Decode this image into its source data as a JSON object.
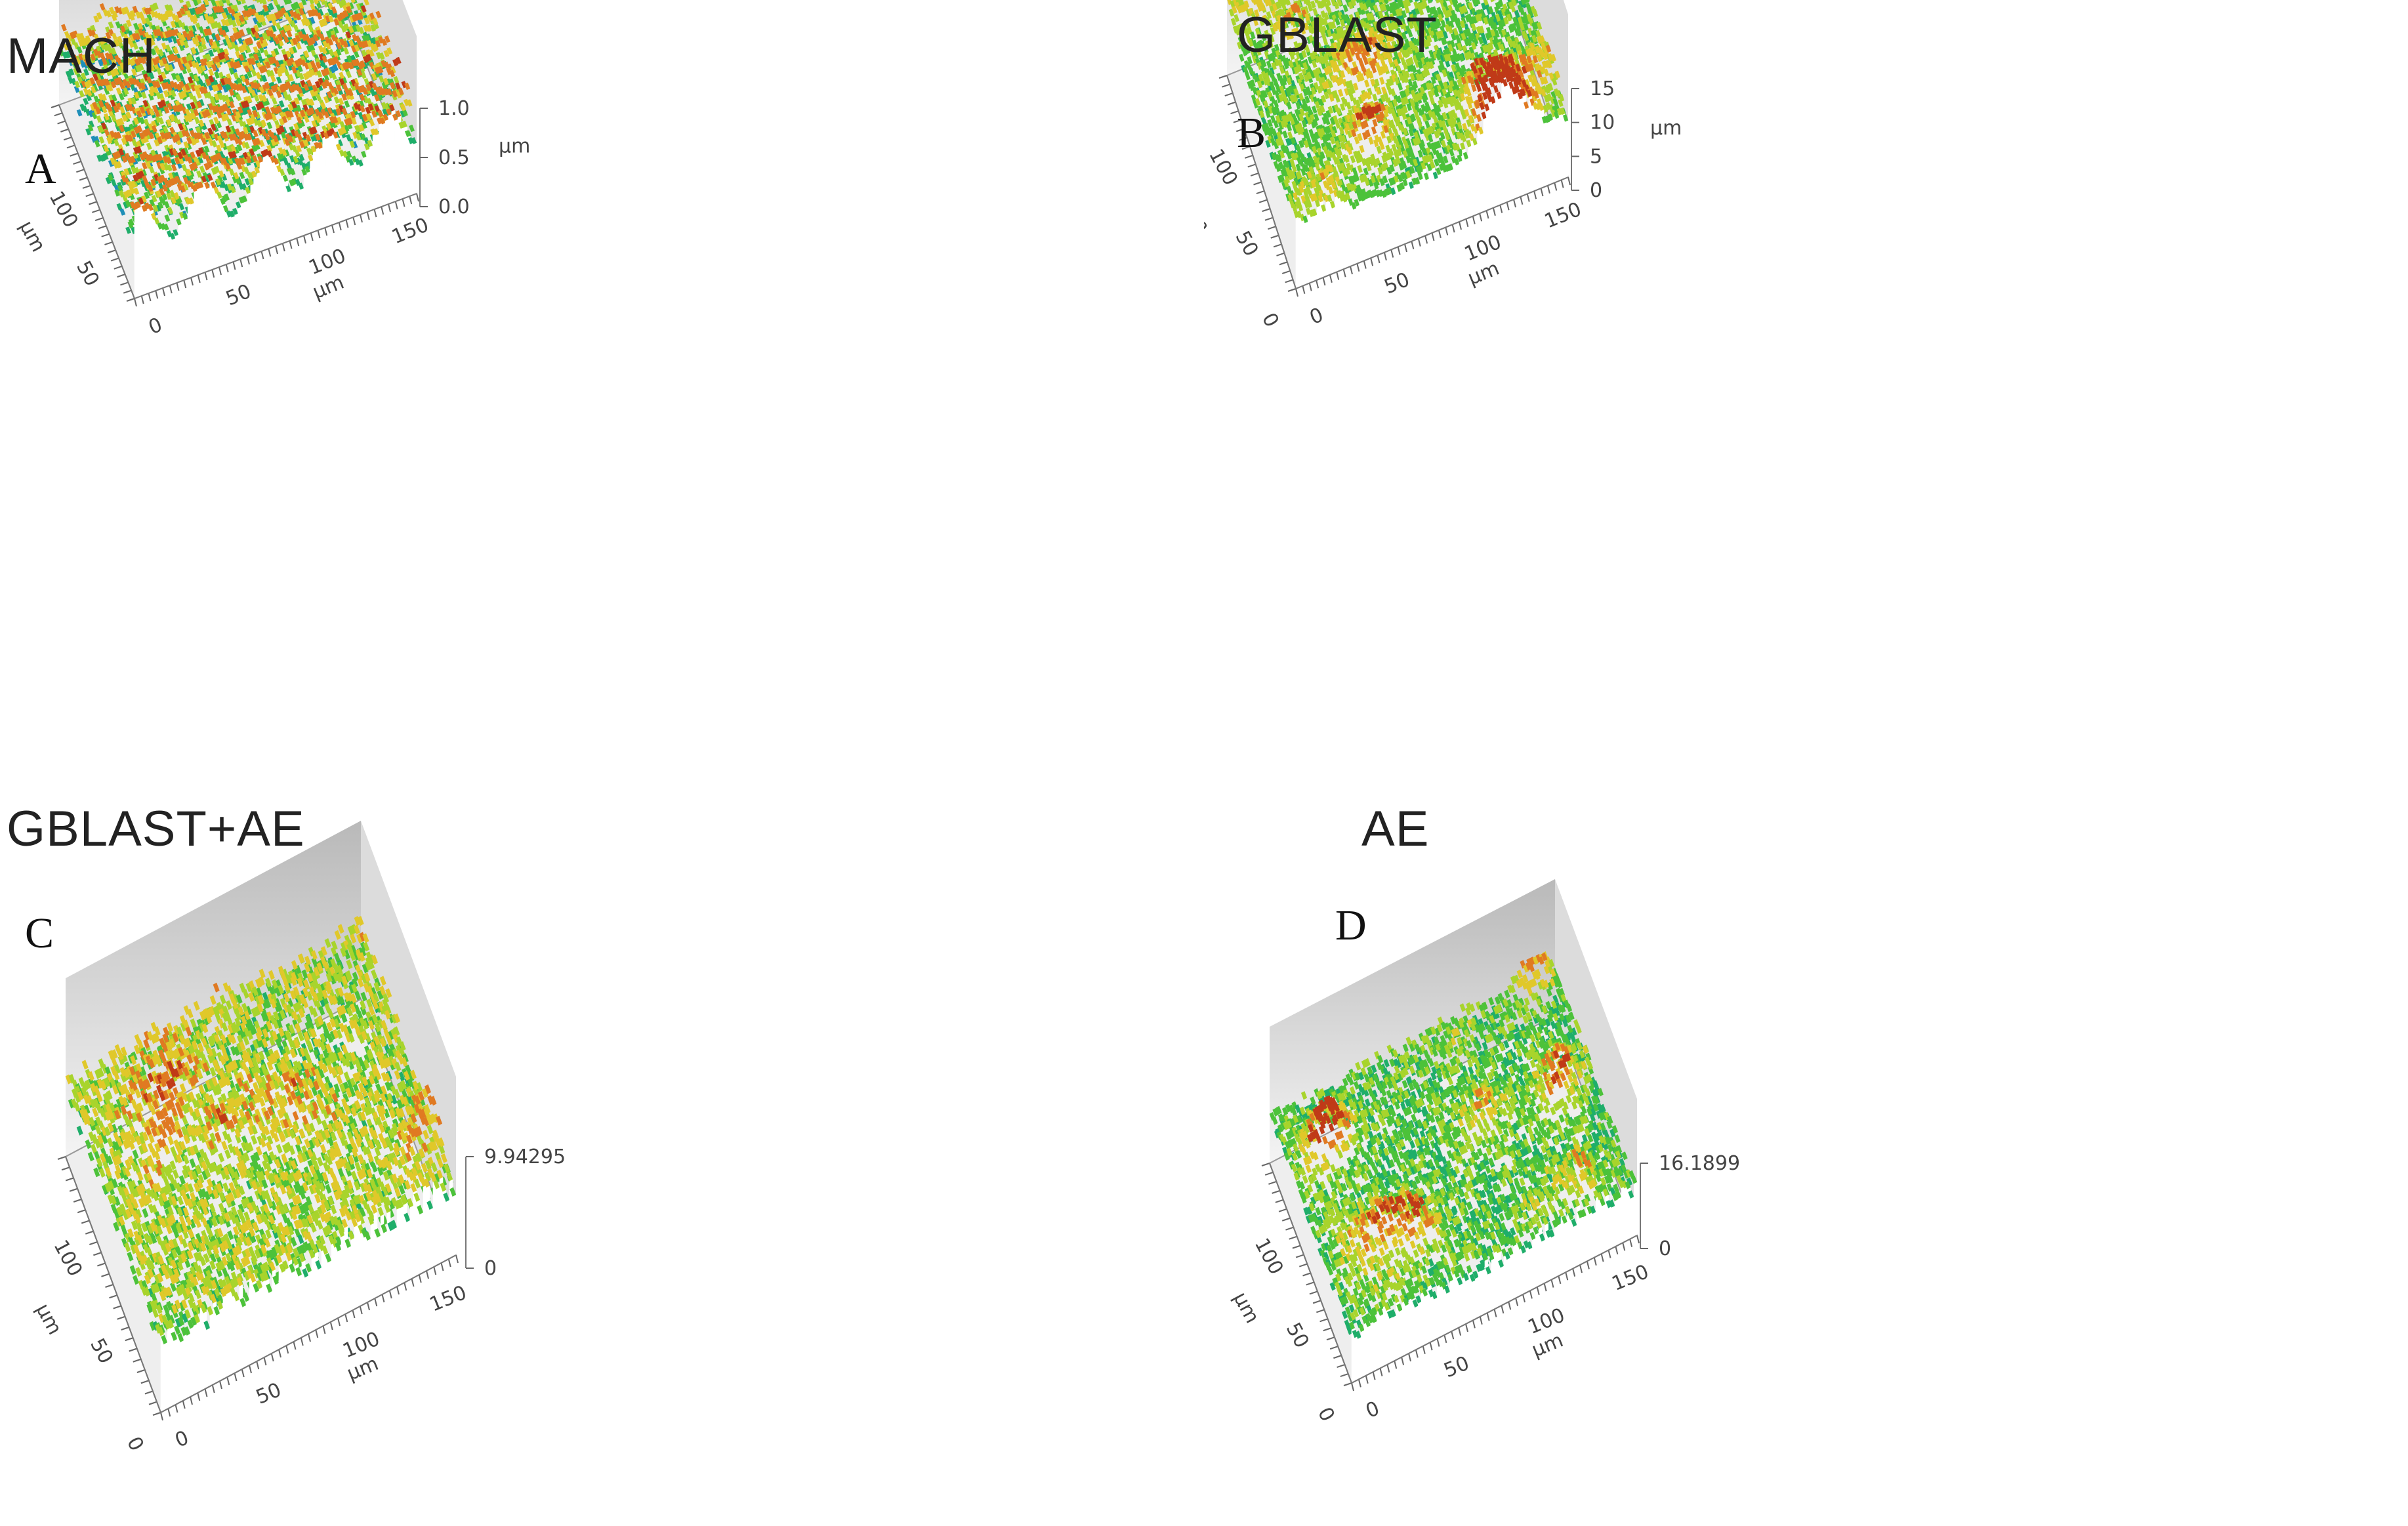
{
  "panels": [
    {
      "id": "A",
      "title": "MACH",
      "letter": "A",
      "x_axis": {
        "label": "µm",
        "ticks": [
          "0",
          "50",
          "100",
          "150"
        ]
      },
      "y_axis": {
        "label": "µm",
        "ticks": [
          "50",
          "100"
        ]
      },
      "z_axis": {
        "label": "µm",
        "ticks": [
          "0.0",
          "0.5",
          "1.0"
        ]
      },
      "surface": {
        "pattern": "ridged",
        "seed": 11
      }
    },
    {
      "id": "B",
      "title": "GBLAST",
      "letter": "B",
      "x_axis": {
        "label": "µm",
        "ticks": [
          "0",
          "50",
          "100",
          "150"
        ]
      },
      "y_axis": {
        "label": "µm",
        "ticks": [
          "0",
          "50",
          "100"
        ]
      },
      "z_axis": {
        "label": "µm",
        "ticks": [
          "0",
          "5",
          "10",
          "15"
        ]
      },
      "surface": {
        "pattern": "blobs",
        "seed": 23
      }
    },
    {
      "id": "C",
      "title": "GBLAST+AE",
      "letter": "C",
      "x_axis": {
        "label": "µm",
        "ticks": [
          "0",
          "50",
          "100",
          "150"
        ]
      },
      "y_axis": {
        "label": "µm",
        "ticks": [
          "0",
          "50",
          "100"
        ]
      },
      "z_axis": {
        "label": "",
        "ticks": [
          "0",
          "9.94295"
        ]
      },
      "surface": {
        "pattern": "fine",
        "seed": 37
      }
    },
    {
      "id": "D",
      "title": "AE",
      "letter": "D",
      "x_axis": {
        "label": "µm",
        "ticks": [
          "0",
          "50",
          "100",
          "150"
        ]
      },
      "y_axis": {
        "label": "µm",
        "ticks": [
          "0",
          "50",
          "100"
        ]
      },
      "z_axis": {
        "label": "",
        "ticks": [
          "0",
          "16.1899"
        ]
      },
      "surface": {
        "pattern": "patchy",
        "seed": 51
      }
    }
  ],
  "colormap": [
    "#2a3f9e",
    "#1f8fb8",
    "#1fae6a",
    "#4cc23a",
    "#a8d42c",
    "#e0c82a",
    "#e07a22",
    "#c03a18",
    "#f2e6ef"
  ]
}
